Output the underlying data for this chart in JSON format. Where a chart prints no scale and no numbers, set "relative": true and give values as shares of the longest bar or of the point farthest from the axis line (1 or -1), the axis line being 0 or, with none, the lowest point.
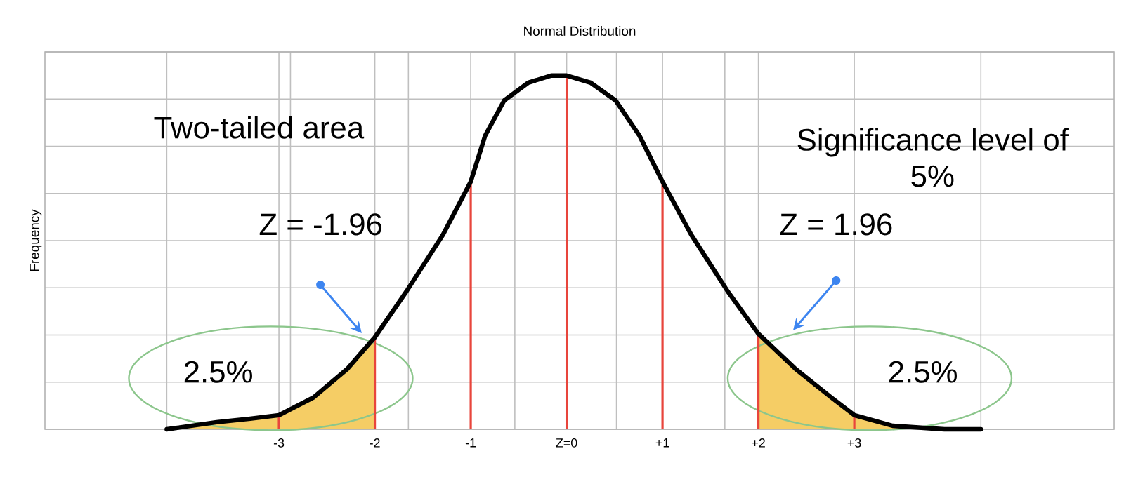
{
  "chart_data": {
    "type": "line",
    "title": "Normal Distribution",
    "ylabel": "Frequency",
    "relative": true,
    "grid": true,
    "xlim": [
      -5.44,
      5.71
    ],
    "xticks": [
      {
        "value": -4.17,
        "label": null
      },
      -3,
      {
        "value": -2.88,
        "label": null
      },
      -2,
      {
        "value": -1.65,
        "label": null
      },
      -1,
      {
        "value": -0.54,
        "label": null
      },
      {
        "value": 0,
        "label": "Z=0"
      },
      {
        "value": 0.52,
        "label": null
      },
      {
        "value": 1,
        "label": "+1"
      },
      {
        "value": 1.65,
        "label": null
      },
      {
        "value": 2,
        "label": "+2"
      },
      {
        "value": 3,
        "label": "+3"
      },
      {
        "value": 4.32,
        "label": null
      }
    ],
    "x": [
      -4.17,
      -3.65,
      -3.3,
      -3,
      -2.64,
      -2.29,
      -2,
      -1.67,
      -1.29,
      -1,
      -0.85,
      -0.65,
      -0.4,
      -0.16,
      0,
      0.25,
      0.51,
      0.76,
      1,
      1.3,
      1.68,
      2,
      2.39,
      2.76,
      3,
      3.4,
      3.94,
      4.32
    ],
    "series": [
      {
        "type": "area",
        "color": "#f5cd65",
        "x": [
          -4.17,
          -3.65,
          -3.3,
          -3,
          -2.64,
          -2.29,
          -2
        ],
        "values": [
          0,
          0.02,
          0.03,
          0.04,
          0.09,
          0.17,
          0.26
        ]
      },
      {
        "type": "area",
        "color": "#f5cd65",
        "x": [
          2,
          2.39,
          2.76,
          3,
          3.4,
          3.94,
          4.32
        ],
        "values": [
          0.27,
          0.17,
          0.09,
          0.04,
          0.01,
          0,
          0
        ]
      },
      {
        "type": "bar",
        "color": "#e8453c",
        "x": [
          -3,
          -2,
          -1,
          0,
          1,
          2,
          3
        ],
        "values": [
          0.04,
          0.26,
          0.7,
          1.0,
          0.7,
          0.27,
          0.04
        ]
      },
      {
        "color": "#000000",
        "values": [
          0,
          0.02,
          0.03,
          0.04,
          0.09,
          0.17,
          0.26,
          0.39,
          0.55,
          0.7,
          0.83,
          0.93,
          0.98,
          1.0,
          1.0,
          0.98,
          0.93,
          0.83,
          0.7,
          0.55,
          0.39,
          0.27,
          0.17,
          0.09,
          0.04,
          0.01,
          0,
          0
        ]
      }
    ],
    "annotations": [
      "Two-tailed area",
      "Significance level of 5%",
      "Z = -1.96",
      "Z = 1.96",
      "2.5%",
      "2.5%"
    ]
  }
}
